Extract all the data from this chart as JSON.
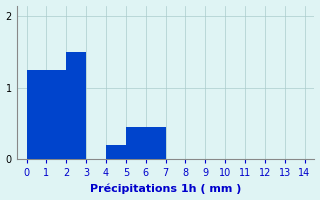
{
  "categories": [
    0,
    1,
    2,
    3,
    4,
    5,
    6,
    7,
    8,
    9,
    10,
    11,
    12,
    13,
    14
  ],
  "values": [
    1.25,
    1.25,
    1.5,
    0.0,
    0.2,
    0.45,
    0.45,
    0.0,
    0.0,
    0.0,
    0.0,
    0.0,
    0.0,
    0.0,
    0.0
  ],
  "bar_color": "#0044cc",
  "background_color": "#dff4f4",
  "grid_color": "#aacccc",
  "xlabel": "Précipitations 1h ( mm )",
  "xlabel_color": "#0000cc",
  "ylim": [
    0,
    2.15
  ],
  "xlim": [
    -0.5,
    14.5
  ],
  "yticks": [
    0,
    1,
    2
  ],
  "xticks": [
    0,
    1,
    2,
    3,
    4,
    5,
    6,
    7,
    8,
    9,
    10,
    11,
    12,
    13,
    14
  ],
  "bar_width": 1.0,
  "tick_fontsize": 7,
  "xlabel_fontsize": 8
}
